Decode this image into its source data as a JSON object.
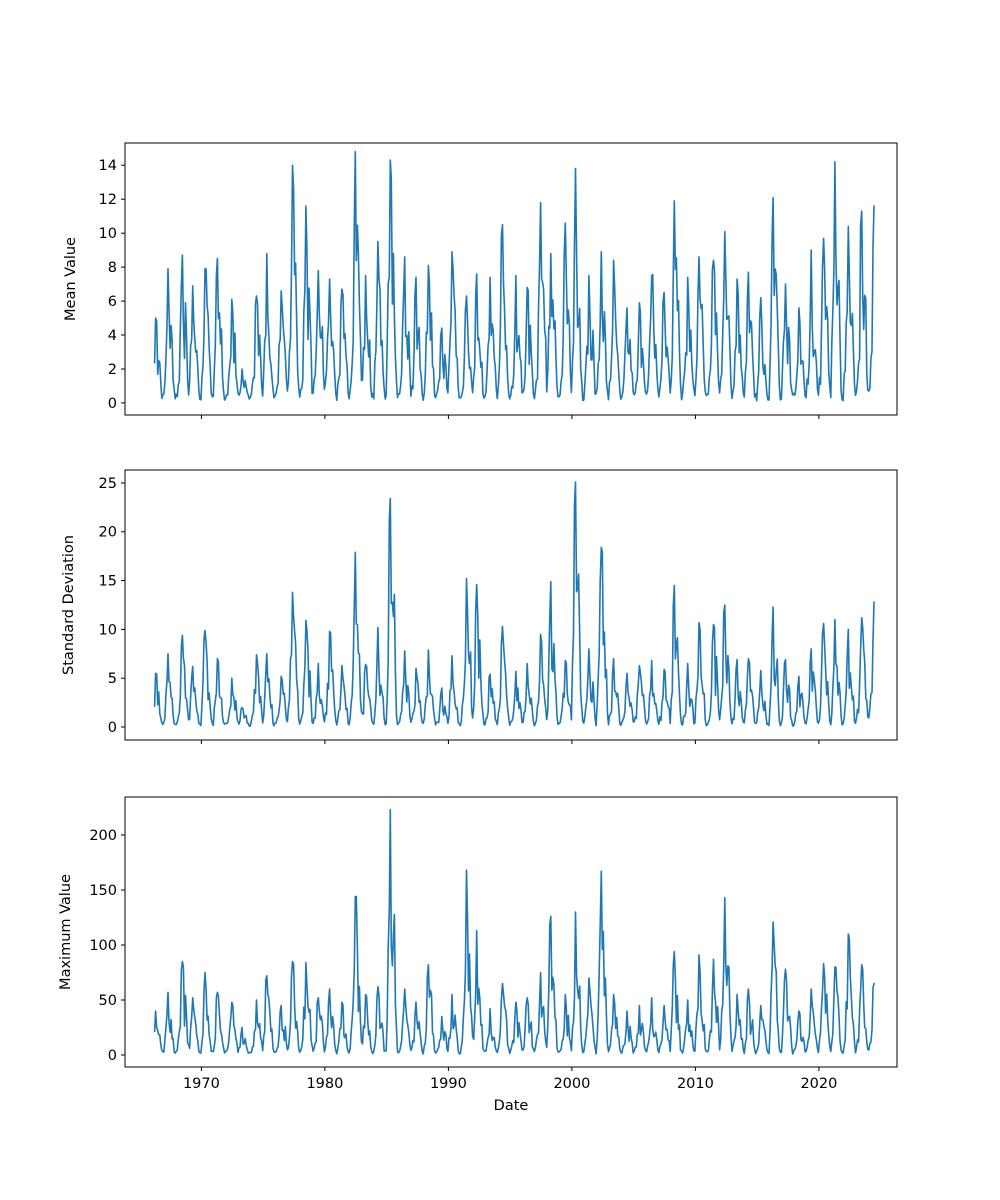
{
  "figure": {
    "background": "#ffffff",
    "title": "",
    "x_axis_label": "Date"
  },
  "chart_data": [
    {
      "type": "line",
      "title": "",
      "ylabel": "Mean Value",
      "xlabel": "",
      "line_color": "#1f77b4",
      "frequency": "monthly",
      "x_axis_range": [
        1963.81,
        2026.32
      ],
      "ylim": [
        -0.71,
        15.31
      ],
      "yticks": [
        0,
        2,
        4,
        6,
        8,
        10,
        12,
        14
      ],
      "xticks": [
        1970,
        1980,
        1990,
        2000,
        2010,
        2020
      ],
      "x_tick_labels_visible": false,
      "data_start": 1966.17,
      "data_end": 2024.45,
      "noise_floor": 0.55,
      "annual_peaks": [
        5.0,
        7.9,
        8.7,
        6.9,
        7.9,
        8.5,
        6.1,
        2.0,
        6.3,
        8.8,
        6.6,
        14.0,
        11.6,
        7.8,
        7.3,
        6.7,
        14.8,
        7.5,
        9.5,
        14.3,
        8.6,
        7.4,
        8.1,
        4.4,
        8.9,
        6.3,
        7.6,
        7.4,
        10.5,
        7.5,
        6.8,
        11.8,
        8.8,
        10.6,
        13.8,
        7.5,
        8.9,
        8.4,
        5.6,
        5.9,
        7.5,
        6.5,
        11.9,
        7.4,
        8.6,
        8.4,
        10.1,
        7.3,
        7.7,
        6.2,
        12.1,
        7.0,
        5.6,
        9.0,
        9.7,
        14.2,
        10.4,
        11.3,
        11.6
      ]
    },
    {
      "type": "line",
      "title": "",
      "ylabel": "Standard Deviation",
      "xlabel": "",
      "line_color": "#1f77b4",
      "frequency": "monthly",
      "x_axis_range": [
        1963.81,
        2026.32
      ],
      "ylim": [
        -1.33,
        26.33
      ],
      "yticks": [
        0,
        5,
        10,
        15,
        20,
        25
      ],
      "xticks": [
        1970,
        1980,
        1990,
        2000,
        2010,
        2020
      ],
      "x_tick_labels_visible": false,
      "data_start": 1966.17,
      "data_end": 2024.45,
      "noise_floor": 0.45,
      "annual_peaks": [
        5.5,
        7.5,
        9.4,
        6.2,
        9.9,
        7.0,
        5.0,
        2.0,
        7.4,
        7.5,
        5.2,
        13.8,
        10.9,
        6.5,
        9.8,
        6.3,
        17.9,
        6.4,
        10.2,
        23.4,
        7.8,
        6.0,
        7.9,
        4.0,
        7.3,
        15.2,
        14.6,
        5.4,
        10.3,
        5.7,
        6.5,
        9.5,
        14.9,
        6.8,
        25.1,
        8.0,
        18.4,
        7.0,
        5.5,
        6.3,
        6.8,
        5.9,
        14.5,
        6.5,
        10.7,
        10.5,
        12.5,
        6.9,
        7.0,
        5.8,
        12.3,
        6.9,
        5.2,
        8.0,
        10.6,
        11.0,
        10.0,
        11.2,
        12.8
      ]
    },
    {
      "type": "line",
      "title": "",
      "ylabel": "Maximum Value",
      "xlabel": "Date",
      "line_color": "#1f77b4",
      "frequency": "monthly",
      "x_axis_range": [
        1963.81,
        2026.32
      ],
      "ylim": [
        -10.9,
        234.5
      ],
      "yticks": [
        0,
        50,
        100,
        150,
        200
      ],
      "xticks": [
        1970,
        1980,
        1990,
        2000,
        2010,
        2020
      ],
      "x_tick_labels_visible": true,
      "data_start": 1966.17,
      "data_end": 2024.45,
      "noise_floor": 3.5,
      "annual_peaks": [
        40,
        57,
        85,
        52,
        75,
        57,
        48,
        25,
        50,
        72,
        45,
        85,
        84,
        52,
        60,
        48,
        144,
        55,
        62,
        223,
        60,
        48,
        82,
        35,
        55,
        168,
        113,
        42,
        65,
        48,
        52,
        75,
        126,
        55,
        130,
        70,
        167,
        55,
        40,
        45,
        52,
        45,
        94,
        50,
        91,
        87,
        143,
        55,
        60,
        45,
        121,
        78,
        40,
        60,
        83,
        80,
        110,
        82,
        65
      ]
    }
  ],
  "years": [
    1966,
    1967,
    1968,
    1969,
    1970,
    1971,
    1972,
    1973,
    1974,
    1975,
    1976,
    1977,
    1978,
    1979,
    1980,
    1981,
    1982,
    1983,
    1984,
    1985,
    1986,
    1987,
    1988,
    1989,
    1990,
    1991,
    1992,
    1993,
    1994,
    1995,
    1996,
    1997,
    1998,
    1999,
    2000,
    2001,
    2002,
    2003,
    2004,
    2005,
    2006,
    2007,
    2008,
    2009,
    2010,
    2011,
    2012,
    2013,
    2014,
    2015,
    2016,
    2017,
    2018,
    2019,
    2020,
    2021,
    2022,
    2023,
    2024
  ]
}
